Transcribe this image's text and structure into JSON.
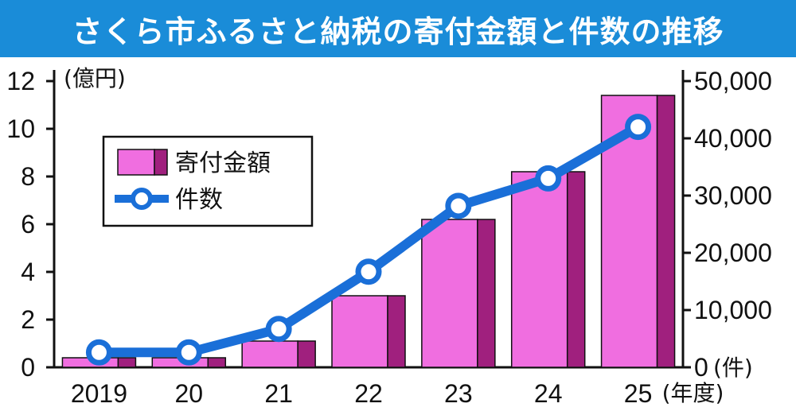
{
  "title": "さくら市ふるさと納税の寄付金額と件数の推移",
  "colors": {
    "title_bg": "#1a8cd8",
    "bar_front": "#f06ee0",
    "bar_side": "#a0207e",
    "line": "#1a6fd8",
    "marker_fill": "#ffffff"
  },
  "chart_data": {
    "type": "bar",
    "categories": [
      "2019",
      "20",
      "21",
      "22",
      "23",
      "24",
      "25"
    ],
    "x_unit": "(年度)",
    "y_left": {
      "unit": "(億円)",
      "range": [
        0,
        12
      ],
      "ticks": [
        "0",
        "2",
        "4",
        "6",
        "8",
        "10",
        "12"
      ]
    },
    "y_right": {
      "unit": "(件)",
      "range": [
        0,
        50000
      ],
      "ticks": [
        "0",
        "10,000",
        "20,000",
        "30,000",
        "40,000",
        "50,000"
      ]
    },
    "series": [
      {
        "name": "寄付金額",
        "type": "bar",
        "axis": "left",
        "values": [
          0.4,
          0.4,
          1.1,
          3.0,
          6.2,
          8.2,
          11.4
        ]
      },
      {
        "name": "件数",
        "type": "line",
        "axis": "right",
        "values": [
          2600,
          2600,
          6700,
          16700,
          28200,
          33000,
          42000
        ]
      }
    ],
    "legend_position": "top-left",
    "grid": false
  }
}
